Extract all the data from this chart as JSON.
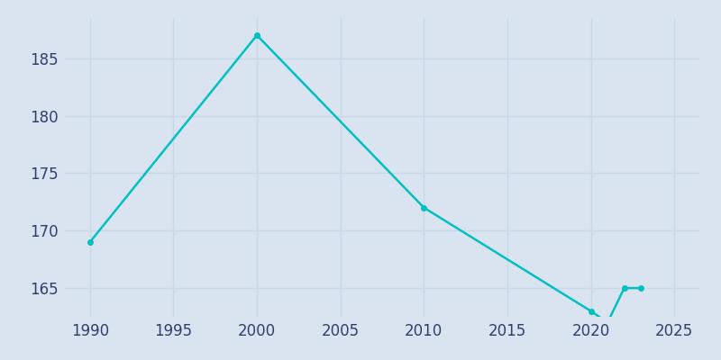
{
  "years": [
    1990,
    2000,
    2010,
    2020,
    2021,
    2022,
    2023
  ],
  "population": [
    169,
    187,
    172,
    163,
    162,
    165,
    165
  ],
  "line_color": "#00c0c0",
  "marker_color": "#00c0c0",
  "bg_color": "#dae4f0",
  "plot_bg_color": "#dae4f0",
  "grid_color": "#c8d8e8",
  "tick_color": "#2e3f6e",
  "ylim": [
    162.5,
    188.5
  ],
  "xlim": [
    1988.5,
    2026.5
  ],
  "yticks": [
    165,
    170,
    175,
    180,
    185
  ],
  "xticks": [
    1990,
    1995,
    2000,
    2005,
    2010,
    2015,
    2020,
    2025
  ],
  "linewidth": 1.8,
  "markersize": 4,
  "tick_fontsize": 12
}
